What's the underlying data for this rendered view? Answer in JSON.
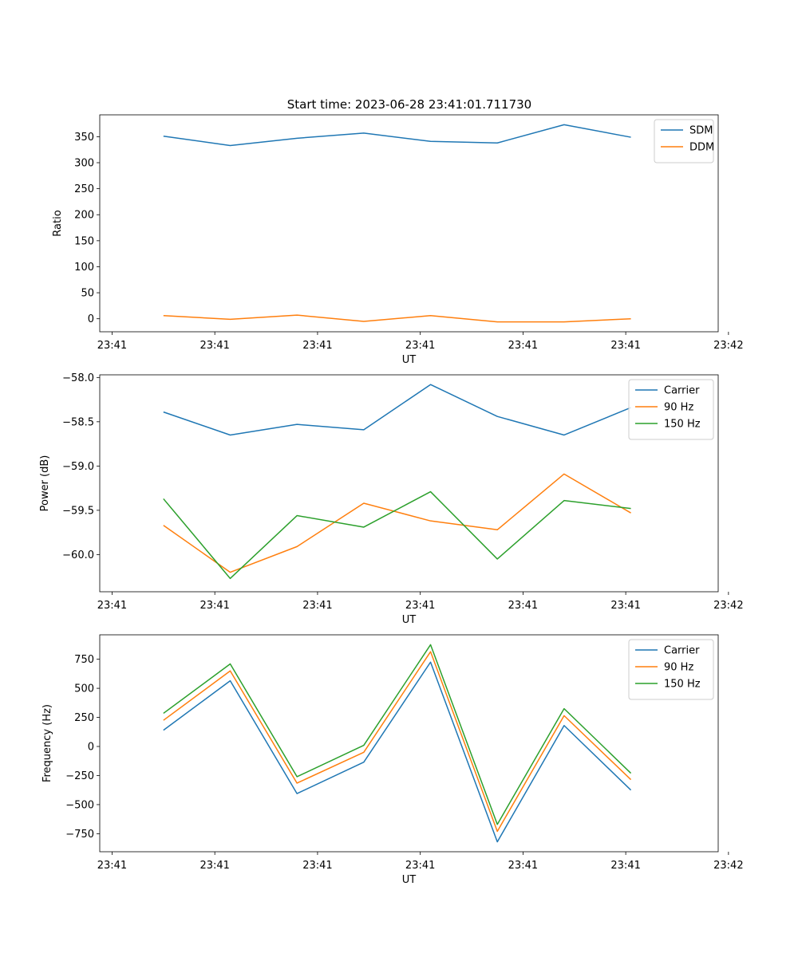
{
  "figure": {
    "title": "Start time: 2023-06-28 23:41:01.711730"
  },
  "chart_data": [
    {
      "type": "line",
      "ylabel": "Ratio",
      "xlabel": "UT",
      "x": [
        0.5,
        1.15,
        1.8,
        2.45,
        3.1,
        3.75,
        4.4,
        5.05
      ],
      "xlim": [
        -0.12,
        5.9
      ],
      "xticks": [
        0,
        1,
        2,
        3,
        4,
        5,
        6
      ],
      "xtick_labels": [
        "23:41",
        "23:41",
        "23:41",
        "23:41",
        "23:41",
        "23:41",
        "23:42"
      ],
      "ylim": [
        -25,
        392
      ],
      "yticks": [
        0,
        50,
        100,
        150,
        200,
        250,
        300,
        350
      ],
      "ytick_labels": [
        "0",
        "50",
        "100",
        "150",
        "200",
        "250",
        "300",
        "350"
      ],
      "legend_position": "top-right",
      "series": [
        {
          "name": "SDM",
          "color": "#1f77b4",
          "values": [
            351,
            333,
            347,
            357,
            341,
            338,
            373,
            349
          ]
        },
        {
          "name": "DDM",
          "color": "#ff7f0e",
          "values": [
            6,
            -1,
            7,
            -5,
            6,
            -6,
            -6,
            0
          ]
        }
      ]
    },
    {
      "type": "line",
      "ylabel": "Power (dB)",
      "xlabel": "UT",
      "x": [
        0.5,
        1.15,
        1.8,
        2.45,
        3.1,
        3.75,
        4.4,
        5.05
      ],
      "xlim": [
        -0.12,
        5.9
      ],
      "xticks": [
        0,
        1,
        2,
        3,
        4,
        5,
        6
      ],
      "xtick_labels": [
        "23:41",
        "23:41",
        "23:41",
        "23:41",
        "23:41",
        "23:41",
        "23:42"
      ],
      "ylim": [
        -60.42,
        -57.97
      ],
      "yticks": [
        -60.0,
        -59.5,
        -59.0,
        -58.5,
        -58.0
      ],
      "ytick_labels": [
        "−60.0",
        "−59.5",
        "−59.0",
        "−58.5",
        "−58.0"
      ],
      "legend_position": "top-right",
      "series": [
        {
          "name": "Carrier",
          "color": "#1f77b4",
          "values": [
            -58.39,
            -58.65,
            -58.53,
            -58.59,
            -58.08,
            -58.44,
            -58.65,
            -58.34
          ]
        },
        {
          "name": "90 Hz",
          "color": "#ff7f0e",
          "values": [
            -59.67,
            -60.2,
            -59.91,
            -59.42,
            -59.62,
            -59.72,
            -59.09,
            -59.53
          ]
        },
        {
          "name": "150 Hz",
          "color": "#2ca02c",
          "values": [
            -59.37,
            -60.27,
            -59.56,
            -59.69,
            -59.29,
            -60.05,
            -59.39,
            -59.48
          ]
        }
      ]
    },
    {
      "type": "line",
      "ylabel": "Frequency (Hz)",
      "xlabel": "UT",
      "x": [
        0.5,
        1.15,
        1.8,
        2.45,
        3.1,
        3.75,
        4.4,
        5.05
      ],
      "xlim": [
        -0.12,
        5.9
      ],
      "xticks": [
        0,
        1,
        2,
        3,
        4,
        5,
        6
      ],
      "xtick_labels": [
        "23:41",
        "23:41",
        "23:41",
        "23:41",
        "23:41",
        "23:41",
        "23:42"
      ],
      "ylim": [
        -905,
        960
      ],
      "yticks": [
        -750,
        -500,
        -250,
        0,
        250,
        500,
        750
      ],
      "ytick_labels": [
        "−750",
        "−500",
        "−250",
        "0",
        "250",
        "500",
        "750"
      ],
      "legend_position": "top-right",
      "series": [
        {
          "name": "Carrier",
          "color": "#1f77b4",
          "values": [
            140,
            565,
            -405,
            -135,
            725,
            -820,
            180,
            -375
          ]
        },
        {
          "name": "90 Hz",
          "color": "#ff7f0e",
          "values": [
            225,
            650,
            -315,
            -50,
            815,
            -730,
            265,
            -285
          ]
        },
        {
          "name": "150 Hz",
          "color": "#2ca02c",
          "values": [
            285,
            710,
            -260,
            10,
            875,
            -670,
            325,
            -230
          ]
        }
      ]
    }
  ]
}
